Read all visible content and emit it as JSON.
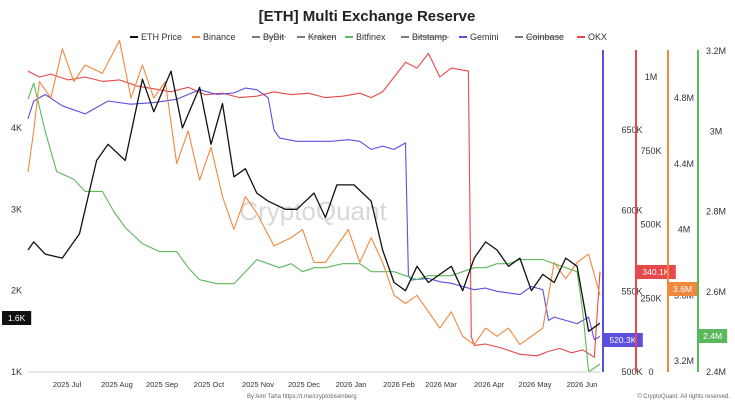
{
  "chart_data": {
    "type": "line",
    "title": "[ETH] Multi Exchange Reserve",
    "watermark": "CryptoQuant",
    "footer_left": "By Amr Taha https://t.me/cryptobisenberg",
    "footer_right": "© CryptoQuant. All rights reserved.",
    "x_ticks": [
      "2025 Jul",
      "2025 Aug",
      "2025 Sep",
      "2025 Oct",
      "2025 Nov",
      "2025 Dec",
      "2026 Jan",
      "2026 Feb",
      "2026 Mar",
      "2026 Apr",
      "2026 May",
      "2026 Jun"
    ],
    "legend": [
      {
        "name": "ETH Price",
        "color": "#111111",
        "strike": false
      },
      {
        "name": "Binance",
        "color": "#f0883e",
        "strike": false
      },
      {
        "name": "ByBit",
        "color": "#7a7a7a",
        "strike": true
      },
      {
        "name": "Kraken",
        "color": "#7a7a7a",
        "strike": true
      },
      {
        "name": "Bitfinex",
        "color": "#5cb85c",
        "strike": false
      },
      {
        "name": "Bitstamp",
        "color": "#7a7a7a",
        "strike": true
      },
      {
        "name": "Gemini",
        "color": "#5b4fe0",
        "strike": false
      },
      {
        "name": "Coinbase",
        "color": "#7a7a7a",
        "strike": true
      },
      {
        "name": "OKX",
        "color": "#e8484a",
        "strike": false
      }
    ],
    "axes": [
      {
        "id": "price",
        "side": "left",
        "ticks": [
          "1K",
          "2K",
          "3K",
          "4K"
        ],
        "badge": "1.6K",
        "badge_color": "#111111"
      },
      {
        "id": "gemini",
        "side": "right",
        "color": "#5b4fe0",
        "ticks": [
          "500K",
          "550K",
          "600K",
          "650K"
        ],
        "badge": "520.3K"
      },
      {
        "id": "okx",
        "side": "right",
        "color": "#e8484a",
        "ticks": [
          "0",
          "250K",
          "500K",
          "750K",
          "1M"
        ],
        "badge": "340.1K"
      },
      {
        "id": "binance",
        "side": "right",
        "color": "#f0883e",
        "ticks": [
          "3.2M",
          "3.6M",
          "4M",
          "4.4M",
          "4.8M"
        ],
        "badge": "3.6M"
      },
      {
        "id": "bitfinex",
        "side": "right",
        "color": "#5cb85c",
        "ticks": [
          "2.4M",
          "2.6M",
          "2.8M",
          "3M",
          "3.2M"
        ],
        "badge": "2.4M"
      }
    ],
    "series": [
      {
        "name": "ETH Price",
        "axis": "price",
        "color": "#111111",
        "x": [
          0.0,
          0.01,
          0.03,
          0.06,
          0.09,
          0.12,
          0.14,
          0.17,
          0.2,
          0.22,
          0.25,
          0.27,
          0.3,
          0.32,
          0.34,
          0.36,
          0.38,
          0.4,
          0.42,
          0.45,
          0.47,
          0.5,
          0.52,
          0.54,
          0.57,
          0.6,
          0.62,
          0.64,
          0.66,
          0.68,
          0.7,
          0.72,
          0.74,
          0.76,
          0.78,
          0.8,
          0.82,
          0.84,
          0.86,
          0.88,
          0.9,
          0.92,
          0.94,
          0.96,
          0.98,
          1.0
        ],
        "y": [
          2500,
          2600,
          2450,
          2400,
          2700,
          3600,
          3800,
          3600,
          4600,
          4200,
          4700,
          4000,
          4500,
          3800,
          4300,
          3400,
          3500,
          3200,
          3100,
          3000,
          3000,
          3200,
          2900,
          3300,
          3300,
          3100,
          2500,
          2100,
          2000,
          2300,
          2100,
          2200,
          2300,
          2000,
          2400,
          2600,
          2500,
          2300,
          2400,
          2000,
          2200,
          2100,
          2400,
          2300,
          1500,
          1600
        ]
      },
      {
        "name": "Binance",
        "axis": "binance",
        "color": "#f0883e",
        "x": [
          0.0,
          0.01,
          0.02,
          0.04,
          0.06,
          0.08,
          0.1,
          0.13,
          0.16,
          0.18,
          0.2,
          0.22,
          0.24,
          0.26,
          0.28,
          0.3,
          0.32,
          0.34,
          0.36,
          0.38,
          0.4,
          0.43,
          0.46,
          0.48,
          0.5,
          0.52,
          0.54,
          0.56,
          0.58,
          0.6,
          0.62,
          0.64,
          0.66,
          0.68,
          0.7,
          0.72,
          0.74,
          0.76,
          0.78,
          0.8,
          0.82,
          0.84,
          0.86,
          0.88,
          0.9,
          0.92,
          0.94,
          0.96,
          0.98,
          1.0
        ],
        "y": [
          4.35,
          4.6,
          4.9,
          4.8,
          5.1,
          4.9,
          5.0,
          4.95,
          5.15,
          4.8,
          5.0,
          4.8,
          4.9,
          4.4,
          4.6,
          4.3,
          4.5,
          4.2,
          4.0,
          4.2,
          4.1,
          3.9,
          3.95,
          4.0,
          3.8,
          3.8,
          3.9,
          4.0,
          3.8,
          3.95,
          3.8,
          3.6,
          3.55,
          3.6,
          3.5,
          3.4,
          3.5,
          3.35,
          3.3,
          3.4,
          3.35,
          3.4,
          3.3,
          3.35,
          3.4,
          3.8,
          3.7,
          3.8,
          3.85,
          3.6
        ]
      },
      {
        "name": "Bitfinex",
        "axis": "bitfinex",
        "color": "#5cb85c",
        "x": [
          0.0,
          0.01,
          0.03,
          0.05,
          0.08,
          0.1,
          0.13,
          0.15,
          0.17,
          0.2,
          0.23,
          0.26,
          0.28,
          0.3,
          0.33,
          0.36,
          0.38,
          0.4,
          0.42,
          0.44,
          0.46,
          0.48,
          0.5,
          0.52,
          0.55,
          0.58,
          0.6,
          0.62,
          0.64,
          0.66,
          0.68,
          0.7,
          0.72,
          0.74,
          0.76,
          0.78,
          0.8,
          0.82,
          0.84,
          0.86,
          0.88,
          0.9,
          0.92,
          0.94,
          0.96,
          0.97,
          0.98,
          1.0
        ],
        "y": [
          3.08,
          3.12,
          3.0,
          2.9,
          2.88,
          2.85,
          2.85,
          2.8,
          2.76,
          2.72,
          2.7,
          2.7,
          2.66,
          2.63,
          2.62,
          2.62,
          2.65,
          2.68,
          2.67,
          2.66,
          2.67,
          2.65,
          2.66,
          2.66,
          2.67,
          2.67,
          2.65,
          2.65,
          2.65,
          2.64,
          2.63,
          2.64,
          2.64,
          2.64,
          2.65,
          2.66,
          2.66,
          2.67,
          2.67,
          2.68,
          2.68,
          2.68,
          2.67,
          2.66,
          2.65,
          2.55,
          2.4,
          2.42
        ]
      },
      {
        "name": "Gemini",
        "axis": "gemini",
        "color": "#5b4fe0",
        "x": [
          0.0,
          0.01,
          0.03,
          0.06,
          0.1,
          0.14,
          0.18,
          0.22,
          0.26,
          0.3,
          0.33,
          0.36,
          0.38,
          0.4,
          0.42,
          0.43,
          0.44,
          0.47,
          0.5,
          0.53,
          0.56,
          0.58,
          0.6,
          0.62,
          0.64,
          0.66,
          0.665,
          0.67,
          0.7,
          0.72,
          0.74,
          0.76,
          0.78,
          0.8,
          0.82,
          0.84,
          0.86,
          0.88,
          0.9,
          0.91,
          0.92,
          0.94,
          0.96,
          0.98,
          0.99,
          1.0
        ],
        "y": [
          657,
          668,
          672,
          665,
          660,
          668,
          666,
          667,
          669,
          675,
          672,
          673,
          676,
          675,
          670,
          650,
          645,
          643,
          643,
          643,
          644,
          643,
          638,
          640,
          638,
          642,
          560,
          557,
          558,
          556,
          555,
          553,
          551,
          552,
          550,
          549,
          548,
          553,
          551,
          532,
          534,
          532,
          530,
          534,
          520,
          522
        ]
      },
      {
        "name": "OKX",
        "axis": "okx",
        "color": "#e8484a",
        "x": [
          0.0,
          0.02,
          0.04,
          0.07,
          0.1,
          0.13,
          0.16,
          0.19,
          0.22,
          0.25,
          0.28,
          0.31,
          0.34,
          0.37,
          0.4,
          0.43,
          0.46,
          0.49,
          0.52,
          0.55,
          0.58,
          0.6,
          0.62,
          0.64,
          0.66,
          0.68,
          0.7,
          0.72,
          0.74,
          0.77,
          0.775,
          0.78,
          0.8,
          0.83,
          0.86,
          0.89,
          0.91,
          0.93,
          0.95,
          0.97,
          0.99,
          1.0
        ],
        "y": [
          1020,
          1000,
          1010,
          990,
          1000,
          985,
          990,
          970,
          960,
          950,
          965,
          940,
          945,
          930,
          935,
          950,
          940,
          945,
          930,
          935,
          945,
          930,
          950,
          1000,
          1050,
          1030,
          1080,
          1000,
          1030,
          1020,
          120,
          90,
          95,
          80,
          60,
          55,
          70,
          80,
          65,
          75,
          50,
          340
        ]
      }
    ]
  }
}
